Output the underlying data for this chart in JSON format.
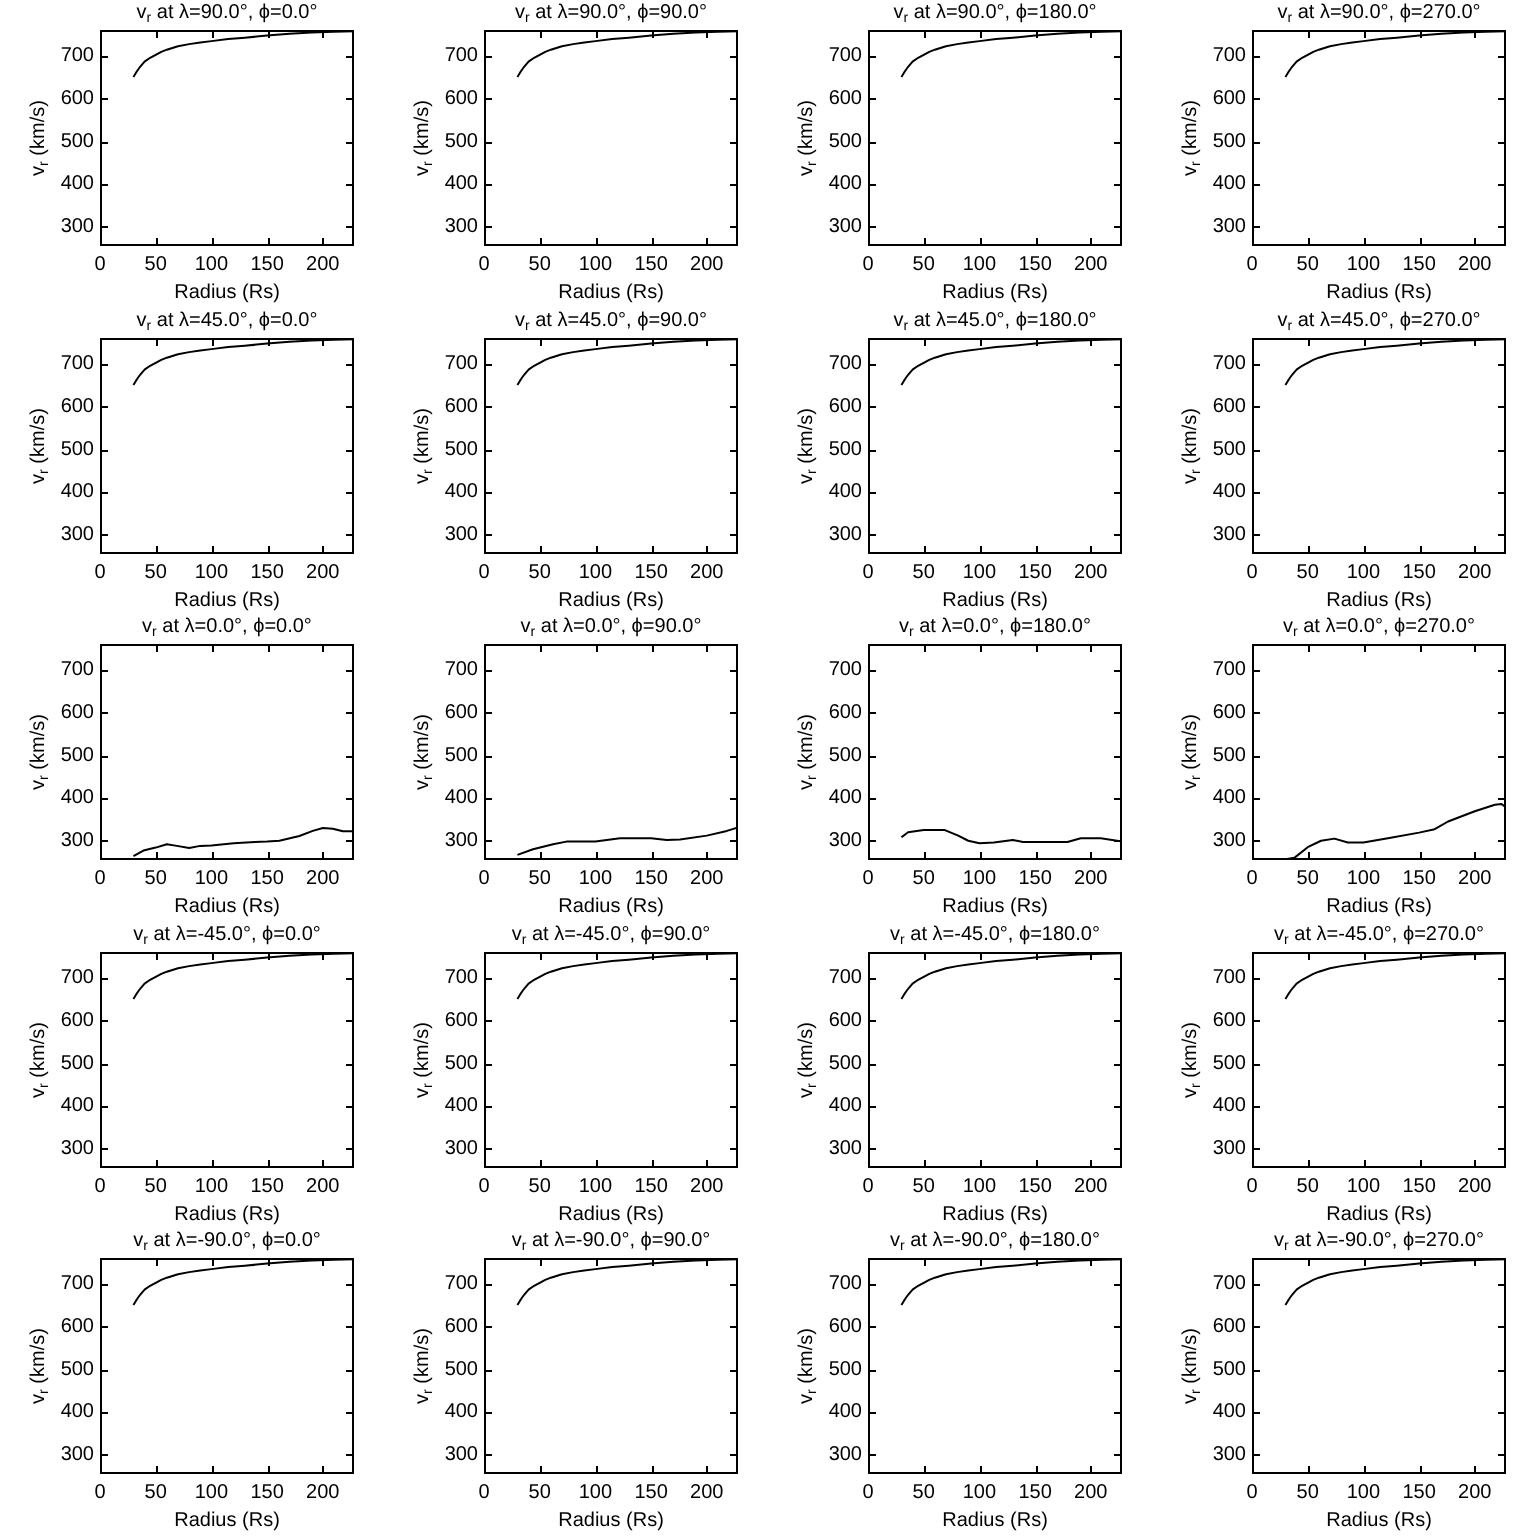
{
  "chart_data": [
    {
      "type": "line",
      "title": "v$_{r}$ at λ=90.0°, ϕ=0.0°",
      "xlabel": "Radius (Rs)",
      "ylabel": "v$_{r}$ (km/s)",
      "x": [
        30,
        33,
        36,
        40,
        45,
        50,
        55,
        60,
        70,
        80,
        90,
        100,
        115,
        130,
        150,
        170,
        190,
        210,
        228
      ],
      "values": [
        650,
        663,
        674,
        686,
        695,
        702,
        709,
        714,
        722,
        727,
        731,
        734,
        739,
        742,
        747,
        751,
        754,
        756,
        757
      ],
      "color": "#000000",
      "xlim": [
        0,
        228
      ],
      "ylim": [
        255,
        760
      ],
      "xticks": [
        0,
        50,
        100,
        150,
        200
      ],
      "yticks": [
        300,
        400,
        500,
        600,
        700
      ]
    },
    {
      "type": "line",
      "title": "v$_{r}$ at λ=90.0°, ϕ=90.0°",
      "xlabel": "Radius (Rs)",
      "ylabel": "v$_{r}$ (km/s)",
      "x": [
        30,
        33,
        36,
        40,
        45,
        50,
        55,
        60,
        70,
        80,
        90,
        100,
        115,
        130,
        150,
        170,
        190,
        210,
        228
      ],
      "values": [
        650,
        663,
        674,
        686,
        695,
        702,
        709,
        714,
        722,
        727,
        731,
        734,
        739,
        742,
        747,
        751,
        754,
        756,
        757
      ],
      "color": "#000000",
      "xlim": [
        0,
        228
      ],
      "ylim": [
        255,
        760
      ],
      "xticks": [
        0,
        50,
        100,
        150,
        200
      ],
      "yticks": [
        300,
        400,
        500,
        600,
        700
      ]
    },
    {
      "type": "line",
      "title": "v$_{r}$ at λ=90.0°, ϕ=180.0°",
      "xlabel": "Radius (Rs)",
      "ylabel": "v$_{r}$ (km/s)",
      "x": [
        30,
        33,
        36,
        40,
        45,
        50,
        55,
        60,
        70,
        80,
        90,
        100,
        115,
        130,
        150,
        170,
        190,
        210,
        228
      ],
      "values": [
        650,
        663,
        674,
        686,
        695,
        702,
        709,
        714,
        722,
        727,
        731,
        734,
        739,
        742,
        747,
        751,
        754,
        756,
        757
      ],
      "color": "#000000",
      "xlim": [
        0,
        228
      ],
      "ylim": [
        255,
        760
      ],
      "xticks": [
        0,
        50,
        100,
        150,
        200
      ],
      "yticks": [
        300,
        400,
        500,
        600,
        700
      ]
    },
    {
      "type": "line",
      "title": "v$_{r}$ at λ=90.0°, ϕ=270.0°",
      "xlabel": "Radius (Rs)",
      "ylabel": "v$_{r}$ (km/s)",
      "x": [
        30,
        33,
        36,
        40,
        45,
        50,
        55,
        60,
        70,
        80,
        90,
        100,
        115,
        130,
        150,
        170,
        190,
        210,
        228
      ],
      "values": [
        650,
        663,
        674,
        686,
        695,
        702,
        709,
        714,
        722,
        727,
        731,
        734,
        739,
        742,
        747,
        751,
        754,
        756,
        757
      ],
      "color": "#000000",
      "xlim": [
        0,
        228
      ],
      "ylim": [
        255,
        760
      ],
      "xticks": [
        0,
        50,
        100,
        150,
        200
      ],
      "yticks": [
        300,
        400,
        500,
        600,
        700
      ]
    },
    {
      "type": "line",
      "title": "v$_{r}$ at λ=45.0°, ϕ=0.0°",
      "xlabel": "Radius (Rs)",
      "ylabel": "v$_{r}$ (km/s)",
      "x": [
        30,
        33,
        36,
        40,
        45,
        50,
        55,
        60,
        70,
        80,
        90,
        100,
        115,
        130,
        150,
        170,
        190,
        210,
        228
      ],
      "values": [
        650,
        663,
        674,
        686,
        695,
        702,
        709,
        714,
        722,
        727,
        731,
        734,
        739,
        742,
        747,
        751,
        754,
        756,
        757
      ],
      "color": "#000000",
      "xlim": [
        0,
        228
      ],
      "ylim": [
        255,
        760
      ],
      "xticks": [
        0,
        50,
        100,
        150,
        200
      ],
      "yticks": [
        300,
        400,
        500,
        600,
        700
      ]
    },
    {
      "type": "line",
      "title": "v$_{r}$ at λ=45.0°, ϕ=90.0°",
      "xlabel": "Radius (Rs)",
      "ylabel": "v$_{r}$ (km/s)",
      "x": [
        30,
        33,
        36,
        40,
        45,
        50,
        55,
        60,
        70,
        80,
        90,
        100,
        115,
        130,
        150,
        170,
        190,
        210,
        228
      ],
      "values": [
        650,
        663,
        674,
        686,
        695,
        702,
        709,
        714,
        722,
        727,
        731,
        734,
        739,
        742,
        747,
        751,
        754,
        756,
        757
      ],
      "color": "#000000",
      "xlim": [
        0,
        228
      ],
      "ylim": [
        255,
        760
      ],
      "xticks": [
        0,
        50,
        100,
        150,
        200
      ],
      "yticks": [
        300,
        400,
        500,
        600,
        700
      ]
    },
    {
      "type": "line",
      "title": "v$_{r}$ at λ=45.0°, ϕ=180.0°",
      "xlabel": "Radius (Rs)",
      "ylabel": "v$_{r}$ (km/s)",
      "x": [
        30,
        33,
        36,
        40,
        45,
        50,
        55,
        60,
        70,
        80,
        90,
        100,
        115,
        130,
        150,
        170,
        190,
        210,
        228
      ],
      "values": [
        650,
        663,
        674,
        686,
        695,
        702,
        709,
        714,
        722,
        727,
        731,
        734,
        739,
        742,
        747,
        751,
        754,
        756,
        757
      ],
      "color": "#000000",
      "xlim": [
        0,
        228
      ],
      "ylim": [
        255,
        760
      ],
      "xticks": [
        0,
        50,
        100,
        150,
        200
      ],
      "yticks": [
        300,
        400,
        500,
        600,
        700
      ]
    },
    {
      "type": "line",
      "title": "v$_{r}$ at λ=45.0°, ϕ=270.0°",
      "xlabel": "Radius (Rs)",
      "ylabel": "v$_{r}$ (km/s)",
      "x": [
        30,
        33,
        36,
        40,
        45,
        50,
        55,
        60,
        70,
        80,
        90,
        100,
        115,
        130,
        150,
        170,
        190,
        210,
        228
      ],
      "values": [
        650,
        663,
        674,
        686,
        695,
        702,
        709,
        714,
        722,
        727,
        731,
        734,
        739,
        742,
        747,
        751,
        754,
        756,
        757
      ],
      "color": "#000000",
      "xlim": [
        0,
        228
      ],
      "ylim": [
        255,
        760
      ],
      "xticks": [
        0,
        50,
        100,
        150,
        200
      ],
      "yticks": [
        300,
        400,
        500,
        600,
        700
      ]
    },
    {
      "type": "line",
      "title": "v$_{r}$ at λ=0.0°, ϕ=0.0°",
      "xlabel": "Radius (Rs)",
      "ylabel": "v$_{r}$ (km/s)",
      "x": [
        30,
        39,
        50,
        60,
        69,
        80,
        90,
        100,
        120,
        139,
        150,
        161,
        179,
        191,
        200,
        209,
        218,
        228
      ],
      "values": [
        264,
        277,
        284,
        292,
        288,
        283,
        288,
        289,
        294,
        297,
        298,
        300,
        311,
        323,
        330,
        328,
        322,
        322
      ],
      "color": "#000000",
      "xlim": [
        0,
        228
      ],
      "ylim": [
        255,
        760
      ],
      "xticks": [
        0,
        50,
        100,
        150,
        200
      ],
      "yticks": [
        300,
        400,
        500,
        600,
        700
      ]
    },
    {
      "type": "line",
      "title": "v$_{r}$ at λ=0.0°, ϕ=90.0°",
      "xlabel": "Radius (Rs)",
      "ylabel": "v$_{r}$ (km/s)",
      "x": [
        30,
        44,
        62,
        74,
        100,
        122,
        150,
        164,
        176,
        200,
        218,
        228
      ],
      "values": [
        267,
        280,
        292,
        298,
        298,
        306,
        306,
        302,
        303,
        312,
        323,
        331
      ],
      "color": "#000000",
      "xlim": [
        0,
        228
      ],
      "ylim": [
        255,
        760
      ],
      "xticks": [
        0,
        50,
        100,
        150,
        200
      ],
      "yticks": [
        300,
        400,
        500,
        600,
        700
      ]
    },
    {
      "type": "line",
      "title": "v$_{r}$ at λ=0.0°, ϕ=180.0°",
      "xlabel": "Radius (Rs)",
      "ylabel": "v$_{r}$ (km/s)",
      "x": [
        30,
        36,
        50,
        69,
        81,
        90,
        100,
        113,
        130,
        139,
        179,
        191,
        209,
        228
      ],
      "values": [
        308,
        320,
        325,
        325,
        312,
        300,
        294,
        296,
        302,
        297,
        297,
        306,
        306,
        298
      ],
      "color": "#000000",
      "xlim": [
        0,
        228
      ],
      "ylim": [
        255,
        760
      ],
      "xticks": [
        0,
        50,
        100,
        150,
        200
      ],
      "yticks": [
        300,
        400,
        500,
        600,
        700
      ]
    },
    {
      "type": "line",
      "title": "v$_{r}$ at λ=0.0°, ϕ=270.0°",
      "xlabel": "Radius (Rs)",
      "ylabel": "v$_{r}$ (km/s)",
      "x": [
        30,
        38,
        50,
        62,
        74,
        86,
        100,
        122,
        150,
        164,
        176,
        200,
        218,
        224,
        228
      ],
      "values": [
        257,
        260,
        285,
        300,
        305,
        296,
        296,
        306,
        319,
        327,
        345,
        369,
        384,
        386,
        378
      ],
      "color": "#000000",
      "xlim": [
        0,
        228
      ],
      "ylim": [
        255,
        760
      ],
      "xticks": [
        0,
        50,
        100,
        150,
        200
      ],
      "yticks": [
        300,
        400,
        500,
        600,
        700
      ]
    },
    {
      "type": "line",
      "title": "v$_{r}$ at λ=-45.0°, ϕ=0.0°",
      "xlabel": "Radius (Rs)",
      "ylabel": "v$_{r}$ (km/s)",
      "x": [
        30,
        33,
        36,
        40,
        45,
        50,
        55,
        60,
        70,
        80,
        90,
        100,
        115,
        130,
        150,
        170,
        190,
        210,
        228
      ],
      "values": [
        650,
        663,
        674,
        686,
        695,
        702,
        709,
        714,
        722,
        727,
        731,
        734,
        739,
        742,
        747,
        751,
        754,
        756,
        757
      ],
      "color": "#000000",
      "xlim": [
        0,
        228
      ],
      "ylim": [
        255,
        760
      ],
      "xticks": [
        0,
        50,
        100,
        150,
        200
      ],
      "yticks": [
        300,
        400,
        500,
        600,
        700
      ]
    },
    {
      "type": "line",
      "title": "v$_{r}$ at λ=-45.0°, ϕ=90.0°",
      "xlabel": "Radius (Rs)",
      "ylabel": "v$_{r}$ (km/s)",
      "x": [
        30,
        33,
        36,
        40,
        45,
        50,
        55,
        60,
        70,
        80,
        90,
        100,
        115,
        130,
        150,
        170,
        190,
        210,
        228
      ],
      "values": [
        650,
        663,
        674,
        686,
        695,
        702,
        709,
        714,
        722,
        727,
        731,
        734,
        739,
        742,
        747,
        751,
        754,
        756,
        757
      ],
      "color": "#000000",
      "xlim": [
        0,
        228
      ],
      "ylim": [
        255,
        760
      ],
      "xticks": [
        0,
        50,
        100,
        150,
        200
      ],
      "yticks": [
        300,
        400,
        500,
        600,
        700
      ]
    },
    {
      "type": "line",
      "title": "v$_{r}$ at λ=-45.0°, ϕ=180.0°",
      "xlabel": "Radius (Rs)",
      "ylabel": "v$_{r}$ (km/s)",
      "x": [
        30,
        33,
        36,
        40,
        45,
        50,
        55,
        60,
        70,
        80,
        90,
        100,
        115,
        130,
        150,
        170,
        190,
        210,
        228
      ],
      "values": [
        650,
        663,
        674,
        686,
        695,
        702,
        709,
        714,
        722,
        727,
        731,
        734,
        739,
        742,
        747,
        751,
        754,
        756,
        757
      ],
      "color": "#000000",
      "xlim": [
        0,
        228
      ],
      "ylim": [
        255,
        760
      ],
      "xticks": [
        0,
        50,
        100,
        150,
        200
      ],
      "yticks": [
        300,
        400,
        500,
        600,
        700
      ]
    },
    {
      "type": "line",
      "title": "v$_{r}$ at λ=-45.0°, ϕ=270.0°",
      "xlabel": "Radius (Rs)",
      "ylabel": "v$_{r}$ (km/s)",
      "x": [
        30,
        33,
        36,
        40,
        45,
        50,
        55,
        60,
        70,
        80,
        90,
        100,
        115,
        130,
        150,
        170,
        190,
        210,
        228
      ],
      "values": [
        650,
        663,
        674,
        686,
        695,
        702,
        709,
        714,
        722,
        727,
        731,
        734,
        739,
        742,
        747,
        751,
        754,
        756,
        757
      ],
      "color": "#000000",
      "xlim": [
        0,
        228
      ],
      "ylim": [
        255,
        760
      ],
      "xticks": [
        0,
        50,
        100,
        150,
        200
      ],
      "yticks": [
        300,
        400,
        500,
        600,
        700
      ]
    },
    {
      "type": "line",
      "title": "v$_{r}$ at λ=-90.0°, ϕ=0.0°",
      "xlabel": "Radius (Rs)",
      "ylabel": "v$_{r}$ (km/s)",
      "x": [
        30,
        33,
        36,
        40,
        45,
        50,
        55,
        60,
        70,
        80,
        90,
        100,
        115,
        130,
        150,
        170,
        190,
        210,
        228
      ],
      "values": [
        650,
        663,
        674,
        686,
        695,
        702,
        709,
        714,
        722,
        727,
        731,
        734,
        739,
        742,
        747,
        751,
        754,
        756,
        757
      ],
      "color": "#000000",
      "xlim": [
        0,
        228
      ],
      "ylim": [
        255,
        760
      ],
      "xticks": [
        0,
        50,
        100,
        150,
        200
      ],
      "yticks": [
        300,
        400,
        500,
        600,
        700
      ]
    },
    {
      "type": "line",
      "title": "v$_{r}$ at λ=-90.0°, ϕ=90.0°",
      "xlabel": "Radius (Rs)",
      "ylabel": "v$_{r}$ (km/s)",
      "x": [
        30,
        33,
        36,
        40,
        45,
        50,
        55,
        60,
        70,
        80,
        90,
        100,
        115,
        130,
        150,
        170,
        190,
        210,
        228
      ],
      "values": [
        650,
        663,
        674,
        686,
        695,
        702,
        709,
        714,
        722,
        727,
        731,
        734,
        739,
        742,
        747,
        751,
        754,
        756,
        757
      ],
      "color": "#000000",
      "xlim": [
        0,
        228
      ],
      "ylim": [
        255,
        760
      ],
      "xticks": [
        0,
        50,
        100,
        150,
        200
      ],
      "yticks": [
        300,
        400,
        500,
        600,
        700
      ]
    },
    {
      "type": "line",
      "title": "v$_{r}$ at λ=-90.0°, ϕ=180.0°",
      "xlabel": "Radius (Rs)",
      "ylabel": "v$_{r}$ (km/s)",
      "x": [
        30,
        33,
        36,
        40,
        45,
        50,
        55,
        60,
        70,
        80,
        90,
        100,
        115,
        130,
        150,
        170,
        190,
        210,
        228
      ],
      "values": [
        650,
        663,
        674,
        686,
        695,
        702,
        709,
        714,
        722,
        727,
        731,
        734,
        739,
        742,
        747,
        751,
        754,
        756,
        757
      ],
      "color": "#000000",
      "xlim": [
        0,
        228
      ],
      "ylim": [
        255,
        760
      ],
      "xticks": [
        0,
        50,
        100,
        150,
        200
      ],
      "yticks": [
        300,
        400,
        500,
        600,
        700
      ]
    },
    {
      "type": "line",
      "title": "v$_{r}$ at λ=-90.0°, ϕ=270.0°",
      "xlabel": "Radius (Rs)",
      "ylabel": "v$_{r}$ (km/s)",
      "x": [
        30,
        33,
        36,
        40,
        45,
        50,
        55,
        60,
        70,
        80,
        90,
        100,
        115,
        130,
        150,
        170,
        190,
        210,
        228
      ],
      "values": [
        650,
        663,
        674,
        686,
        695,
        702,
        709,
        714,
        722,
        727,
        731,
        734,
        739,
        742,
        747,
        751,
        754,
        756,
        757
      ],
      "color": "#000000",
      "xlim": [
        0,
        228
      ],
      "ylim": [
        255,
        760
      ],
      "xticks": [
        0,
        50,
        100,
        150,
        200
      ],
      "yticks": [
        300,
        400,
        500,
        600,
        700
      ]
    }
  ]
}
